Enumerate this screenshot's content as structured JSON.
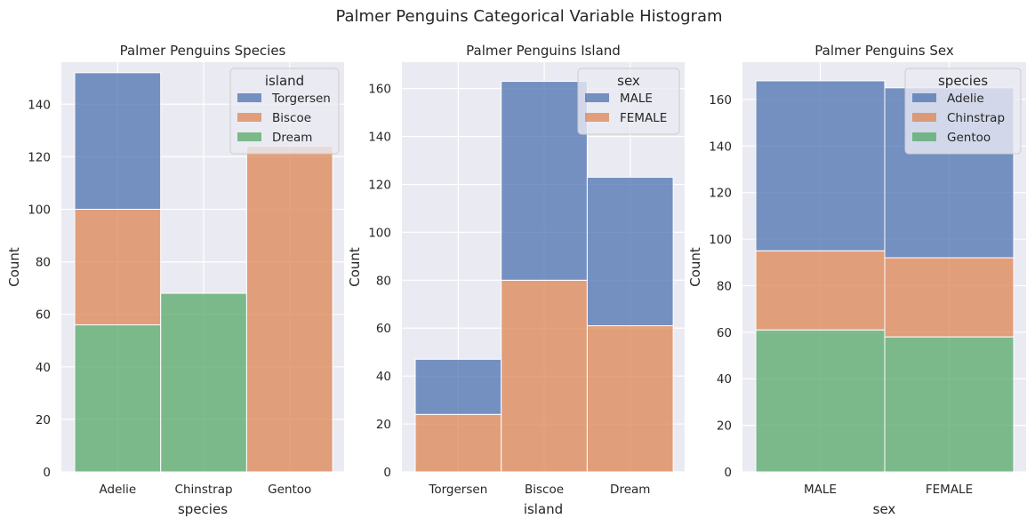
{
  "figure_title": "Palmer Penguins Categorical Variable Histogram",
  "colors": {
    "blue": "#4c72b0",
    "orange": "#dd8452",
    "green": "#55a868"
  },
  "chart_data": [
    {
      "type": "bar",
      "stacked": true,
      "title": "Palmer Penguins Species",
      "xlabel": "species",
      "ylabel": "Count",
      "categories": [
        "Adelie",
        "Chinstrap",
        "Gentoo"
      ],
      "ylim": [
        0,
        156
      ],
      "yticks": [
        0,
        20,
        40,
        60,
        80,
        100,
        120,
        140
      ],
      "legend_title": "island",
      "legend_placement": "top-right",
      "grid": true,
      "series": [
        {
          "name": "Torgersen",
          "color": "#4c72b0",
          "values": [
            52,
            0,
            0
          ]
        },
        {
          "name": "Biscoe",
          "color": "#dd8452",
          "values": [
            44,
            0,
            124
          ]
        },
        {
          "name": "Dream",
          "color": "#55a868",
          "values": [
            56,
            68,
            0
          ]
        }
      ]
    },
    {
      "type": "bar",
      "stacked": true,
      "title": "Palmer Penguins Island",
      "xlabel": "island",
      "ylabel": "Count",
      "categories": [
        "Torgersen",
        "Biscoe",
        "Dream"
      ],
      "ylim": [
        0,
        171
      ],
      "yticks": [
        0,
        20,
        40,
        60,
        80,
        100,
        120,
        140,
        160
      ],
      "legend_title": "sex",
      "legend_placement": "top-right",
      "grid": true,
      "series": [
        {
          "name": "MALE",
          "color": "#4c72b0",
          "values": [
            23,
            83,
            62
          ]
        },
        {
          "name": "FEMALE",
          "color": "#dd8452",
          "values": [
            24,
            80,
            61
          ]
        }
      ]
    },
    {
      "type": "bar",
      "stacked": true,
      "title": "Palmer Penguins Sex",
      "xlabel": "sex",
      "ylabel": "Count",
      "categories": [
        "MALE",
        "FEMALE"
      ],
      "ylim": [
        0,
        176
      ],
      "yticks": [
        0,
        20,
        40,
        60,
        80,
        100,
        120,
        140,
        160
      ],
      "legend_title": "species",
      "legend_placement": "top-right",
      "grid": true,
      "series": [
        {
          "name": "Adelie",
          "color": "#4c72b0",
          "values": [
            73,
            73
          ]
        },
        {
          "name": "Chinstrap",
          "color": "#dd8452",
          "values": [
            34,
            34
          ]
        },
        {
          "name": "Gentoo",
          "color": "#55a868",
          "values": [
            61,
            58
          ]
        }
      ]
    }
  ]
}
